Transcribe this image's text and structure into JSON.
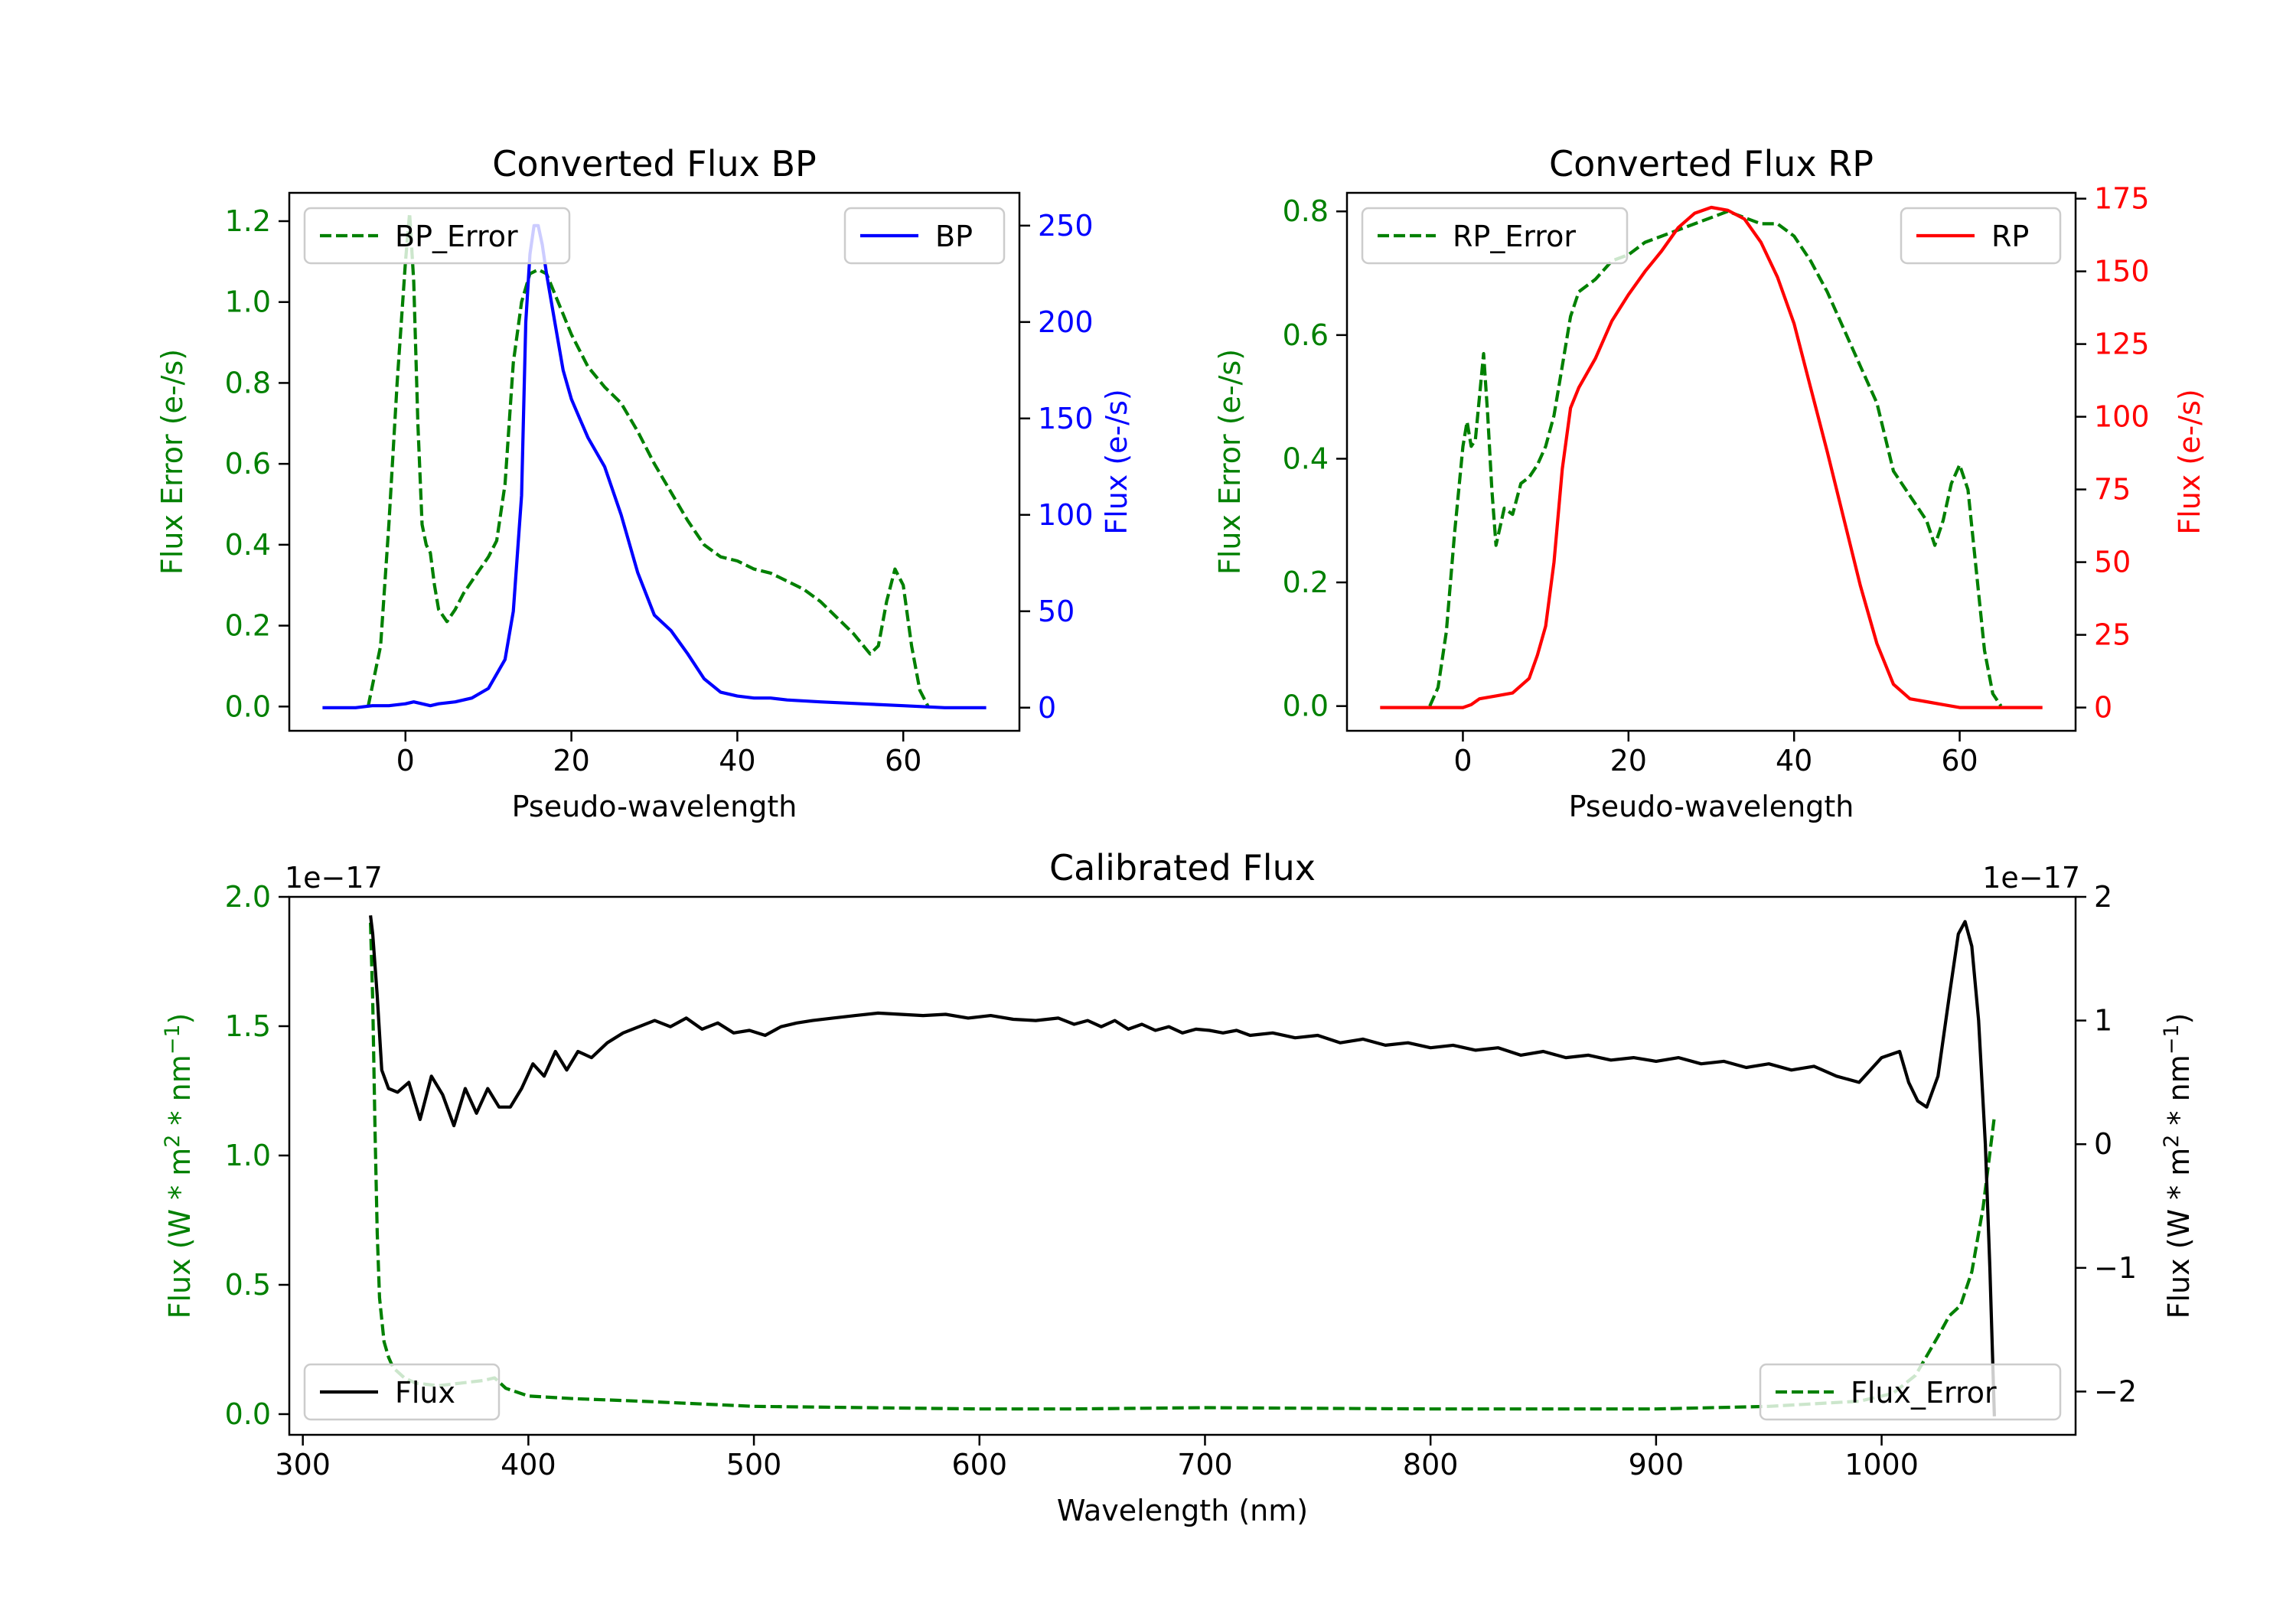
{
  "colors": {
    "green": "#008000",
    "blue": "#0000ff",
    "red": "#ff0000",
    "black": "#000000"
  },
  "chart_data": [
    {
      "type": "line",
      "title": "Converted Flux BP",
      "xlabel": "Pseudo-wavelength",
      "ylabel": "Flux Error (e-/s)",
      "ylabel_right": "Flux (e-/s)",
      "xlim": [
        -14,
        74
      ],
      "ylim": [
        -0.06,
        1.27
      ],
      "ylim_right": [
        -12,
        267
      ],
      "xticks": [
        0,
        20,
        40,
        60
      ],
      "yticks": [
        0.0,
        0.2,
        0.4,
        0.6,
        0.8,
        1.0,
        1.2
      ],
      "ytick_labels": [
        "0.0",
        "0.2",
        "0.4",
        "0.6",
        "0.8",
        "1.0",
        "1.2"
      ],
      "yticks_right": [
        0,
        50,
        100,
        150,
        200,
        250
      ],
      "ytick_labels_right": [
        "0",
        "50",
        "100",
        "150",
        "200",
        "250"
      ],
      "series": [
        {
          "name": "BP_Error",
          "axis": "left",
          "color": "green",
          "style": "dashed",
          "x": [
            -4.5,
            -3,
            -2,
            -1,
            0,
            0.5,
            1,
            1.5,
            2,
            2.5,
            3,
            3.5,
            4,
            5,
            6,
            7,
            8,
            9,
            10,
            11,
            12,
            13,
            14,
            15,
            16,
            17,
            18,
            19,
            20,
            22,
            24,
            26,
            28,
            30,
            32,
            34,
            36,
            38,
            40,
            42,
            44,
            46,
            48,
            50,
            52,
            54,
            56,
            57,
            58,
            59,
            60,
            61,
            62,
            63
          ],
          "y": [
            0.0,
            0.15,
            0.45,
            0.8,
            1.1,
            1.22,
            1.05,
            0.7,
            0.45,
            0.4,
            0.38,
            0.3,
            0.24,
            0.21,
            0.24,
            0.28,
            0.31,
            0.34,
            0.37,
            0.41,
            0.55,
            0.85,
            1.0,
            1.07,
            1.08,
            1.07,
            1.02,
            0.97,
            0.92,
            0.84,
            0.79,
            0.75,
            0.68,
            0.6,
            0.53,
            0.46,
            0.4,
            0.37,
            0.36,
            0.34,
            0.33,
            0.31,
            0.29,
            0.26,
            0.22,
            0.18,
            0.13,
            0.15,
            0.26,
            0.34,
            0.3,
            0.15,
            0.04,
            0.0
          ]
        },
        {
          "name": "BP",
          "axis": "right",
          "color": "blue",
          "style": "solid",
          "x": [
            -10,
            -6,
            -4,
            -2,
            0,
            1,
            2,
            3,
            4,
            6,
            8,
            10,
            12,
            13,
            14,
            14.5,
            15,
            15.5,
            16,
            16.5,
            17,
            18,
            19,
            20,
            21,
            22,
            24,
            26,
            28,
            30,
            32,
            34,
            36,
            38,
            40,
            42,
            44,
            46,
            50,
            55,
            60,
            65,
            70
          ],
          "y": [
            0,
            0,
            1,
            1,
            2,
            3,
            2,
            1,
            2,
            3,
            5,
            10,
            25,
            50,
            110,
            200,
            235,
            250,
            250,
            240,
            225,
            200,
            175,
            160,
            150,
            140,
            125,
            100,
            70,
            48,
            40,
            28,
            15,
            8,
            6,
            5,
            5,
            4,
            3,
            2,
            1,
            0,
            0
          ]
        }
      ],
      "legend": [
        {
          "label": "BP_Error",
          "position": "top-left"
        },
        {
          "label": "BP",
          "position": "top-right"
        }
      ]
    },
    {
      "type": "line",
      "title": "Converted Flux RP",
      "xlabel": "Pseudo-wavelength",
      "ylabel": "Flux Error (e-/s)",
      "ylabel_right": "Flux (e-/s)",
      "xlim": [
        -14,
        74
      ],
      "ylim": [
        -0.04,
        0.83
      ],
      "ylim_right": [
        -8,
        177
      ],
      "xticks": [
        0,
        20,
        40,
        60
      ],
      "yticks": [
        0.0,
        0.2,
        0.4,
        0.6,
        0.8
      ],
      "ytick_labels": [
        "0.0",
        "0.2",
        "0.4",
        "0.6",
        "0.8"
      ],
      "yticks_right": [
        0,
        25,
        50,
        75,
        100,
        125,
        150,
        175
      ],
      "ytick_labels_right": [
        "0",
        "25",
        "50",
        "75",
        "100",
        "125",
        "150",
        "175"
      ],
      "series": [
        {
          "name": "RP_Error",
          "axis": "left",
          "color": "green",
          "style": "dashed",
          "x": [
            -4,
            -3,
            -2,
            -1,
            0,
            0.5,
            1,
            1.5,
            2,
            2.5,
            3,
            3.5,
            4,
            5,
            6,
            7,
            8,
            9,
            10,
            11,
            12,
            13,
            14,
            16,
            18,
            20,
            22,
            24,
            26,
            28,
            30,
            32,
            34,
            36,
            38,
            40,
            42,
            44,
            46,
            48,
            50,
            52,
            54,
            55,
            56,
            57,
            58,
            59,
            60,
            61,
            62,
            63,
            64,
            65
          ],
          "y": [
            0.0,
            0.03,
            0.12,
            0.28,
            0.42,
            0.46,
            0.42,
            0.43,
            0.5,
            0.57,
            0.47,
            0.35,
            0.26,
            0.32,
            0.31,
            0.36,
            0.37,
            0.39,
            0.42,
            0.47,
            0.55,
            0.63,
            0.67,
            0.69,
            0.72,
            0.73,
            0.75,
            0.76,
            0.77,
            0.78,
            0.79,
            0.8,
            0.79,
            0.78,
            0.78,
            0.76,
            0.72,
            0.67,
            0.61,
            0.55,
            0.49,
            0.38,
            0.34,
            0.32,
            0.3,
            0.26,
            0.3,
            0.36,
            0.39,
            0.35,
            0.22,
            0.09,
            0.02,
            0.0
          ]
        },
        {
          "name": "RP",
          "axis": "right",
          "color": "red",
          "style": "solid",
          "x": [
            -10,
            -4,
            -2,
            0,
            1,
            2,
            4,
            6,
            8,
            9,
            10,
            11,
            12,
            13,
            14,
            15,
            16,
            18,
            20,
            22,
            24,
            26,
            28,
            30,
            32,
            34,
            36,
            38,
            40,
            42,
            44,
            46,
            48,
            50,
            52,
            54,
            56,
            58,
            60,
            62,
            66,
            70
          ],
          "y": [
            0,
            0,
            0,
            0,
            1,
            3,
            4,
            5,
            10,
            18,
            28,
            50,
            82,
            103,
            110,
            115,
            120,
            133,
            142,
            150,
            157,
            165,
            170,
            172,
            171,
            168,
            160,
            148,
            132,
            110,
            88,
            65,
            42,
            22,
            8,
            3,
            2,
            1,
            0,
            0,
            0,
            0
          ]
        }
      ],
      "legend": [
        {
          "label": "RP_Error",
          "position": "top-left"
        },
        {
          "label": "RP",
          "position": "top-right"
        }
      ]
    },
    {
      "type": "line",
      "title": "Calibrated Flux",
      "xlabel": "Wavelength (nm)",
      "ylabel": "Flux (W * m",
      "ylabel_sup": "2",
      "ylabel_mid": " * nm",
      "ylabel_sup2": "−1",
      "ylabel_end": ")",
      "ylabel_right": "Flux (W * m",
      "offset_left": "1e−17",
      "offset_right": "1e−17",
      "xlim": [
        294,
        1086
      ],
      "ylim": [
        -0.08,
        2.0
      ],
      "ylim_right": [
        -2.35,
        2.0
      ],
      "xticks": [
        300,
        400,
        500,
        600,
        700,
        800,
        900,
        1000
      ],
      "yticks": [
        0.0,
        0.5,
        1.0,
        1.5,
        2.0
      ],
      "ytick_labels": [
        "0.0",
        "0.5",
        "1.0",
        "1.5",
        "2.0"
      ],
      "yticks_right": [
        -2,
        -1,
        0,
        1,
        2
      ],
      "ytick_labels_right": [
        "−2",
        "−1",
        "0",
        "1",
        "2"
      ],
      "series": [
        {
          "name": "Flux_Error",
          "axis": "left",
          "color": "green",
          "style": "dashed",
          "x": [
            330,
            331,
            332,
            333,
            334,
            336,
            338,
            340,
            345,
            350,
            360,
            370,
            380,
            385,
            390,
            400,
            420,
            450,
            500,
            550,
            600,
            640,
            700,
            800,
            900,
            950,
            990,
            1005,
            1015,
            1025,
            1030,
            1035,
            1040,
            1045,
            1050
          ],
          "y": [
            1.9,
            1.6,
            1.1,
            0.7,
            0.45,
            0.28,
            0.22,
            0.18,
            0.14,
            0.12,
            0.11,
            0.12,
            0.13,
            0.14,
            0.1,
            0.07,
            0.06,
            0.05,
            0.03,
            0.025,
            0.02,
            0.02,
            0.025,
            0.02,
            0.02,
            0.03,
            0.05,
            0.08,
            0.15,
            0.3,
            0.38,
            0.42,
            0.55,
            0.8,
            1.15
          ]
        },
        {
          "name": "Flux",
          "axis": "right",
          "color": "black",
          "style": "solid",
          "x": [
            330,
            331,
            333,
            335,
            338,
            342,
            347,
            352,
            357,
            362,
            367,
            372,
            377,
            382,
            387,
            392,
            397,
            402,
            407,
            412,
            417,
            422,
            428,
            435,
            442,
            449,
            456,
            463,
            470,
            477,
            484,
            491,
            498,
            505,
            512,
            519,
            526,
            535,
            545,
            555,
            565,
            575,
            585,
            595,
            605,
            615,
            625,
            635,
            642,
            648,
            654,
            660,
            666,
            672,
            678,
            684,
            690,
            696,
            702,
            708,
            714,
            720,
            730,
            740,
            750,
            760,
            770,
            780,
            790,
            800,
            810,
            820,
            830,
            840,
            850,
            860,
            870,
            880,
            890,
            900,
            910,
            920,
            930,
            940,
            950,
            960,
            970,
            980,
            990,
            1000,
            1008,
            1012,
            1016,
            1020,
            1025,
            1030,
            1034,
            1037,
            1040,
            1043,
            1046,
            1048,
            1050
          ],
          "y": [
            1.85,
            1.7,
            1.2,
            0.6,
            0.45,
            0.42,
            0.5,
            0.2,
            0.55,
            0.4,
            0.15,
            0.45,
            0.25,
            0.45,
            0.3,
            0.3,
            0.45,
            0.65,
            0.55,
            0.75,
            0.6,
            0.75,
            0.7,
            0.82,
            0.9,
            0.95,
            1.0,
            0.95,
            1.02,
            0.93,
            0.98,
            0.9,
            0.92,
            0.88,
            0.95,
            0.98,
            1.0,
            1.02,
            1.04,
            1.06,
            1.05,
            1.04,
            1.05,
            1.02,
            1.04,
            1.01,
            1.0,
            1.02,
            0.97,
            1.0,
            0.95,
            1.0,
            0.93,
            0.97,
            0.92,
            0.95,
            0.9,
            0.93,
            0.92,
            0.9,
            0.92,
            0.88,
            0.9,
            0.86,
            0.88,
            0.82,
            0.85,
            0.8,
            0.82,
            0.78,
            0.8,
            0.76,
            0.78,
            0.72,
            0.75,
            0.7,
            0.72,
            0.68,
            0.7,
            0.67,
            0.7,
            0.65,
            0.67,
            0.62,
            0.65,
            0.6,
            0.63,
            0.55,
            0.5,
            0.7,
            0.75,
            0.5,
            0.35,
            0.3,
            0.55,
            1.2,
            1.7,
            1.8,
            1.6,
            1.0,
            0.0,
            -1.0,
            -2.2
          ]
        }
      ],
      "legend": [
        {
          "label": "Flux",
          "position": "bottom-left"
        },
        {
          "label": "Flux_Error",
          "position": "bottom-right"
        }
      ]
    }
  ]
}
